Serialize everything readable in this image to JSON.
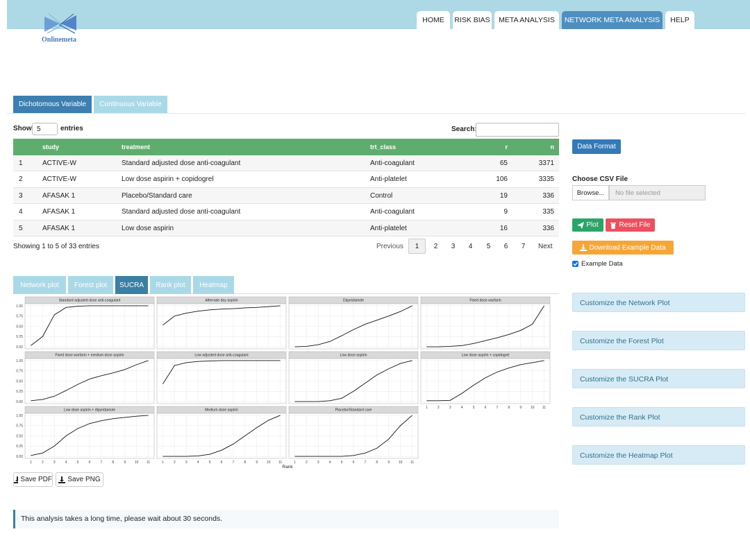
{
  "header": {
    "logo": "Onlinemeta",
    "tabs": [
      "HOME",
      "RISK BIAS",
      "META ANALYSIS",
      "NETWORK META ANALYSIS",
      "HELP"
    ],
    "active_tab": 3
  },
  "variable_tabs": {
    "items": [
      "Dichotomous Variable",
      "Continuous Variable"
    ],
    "active": 0
  },
  "table": {
    "show": "Show",
    "length": 5,
    "entries": "entries",
    "search": "Search:",
    "columns": [
      "study",
      "treatment",
      "trt_class",
      "r",
      "n"
    ],
    "rows": [
      [
        1,
        "ACTIVE-W",
        "Standard adjusted dose anti-coagulant",
        "Anti-coagulant",
        65,
        3371
      ],
      [
        2,
        "ACTIVE-W",
        "Low dose aspirin + copidogrel",
        "Anti-platelet",
        106,
        3335
      ],
      [
        3,
        "AFASAK 1",
        "Placebo/Standard care",
        "Control",
        19,
        336
      ],
      [
        4,
        "AFASAK 1",
        "Standard adjusted dose anti-coagulant",
        "Anti-coagulant",
        9,
        335
      ],
      [
        5,
        "AFASAK 1",
        "Low dose aspirin",
        "Anti-platelet",
        16,
        336
      ]
    ],
    "info": "Showing 1 to 5 of 33 entries",
    "previous": "Previous",
    "pages": [
      1,
      2,
      3,
      4,
      5,
      6,
      7
    ],
    "current_page": 1,
    "next": "Next"
  },
  "plot_tabs": {
    "items": [
      "Network plot",
      "Forest plot",
      "SUCRA",
      "Rank plot",
      "Heatmap"
    ],
    "active": 2
  },
  "chart_data": {
    "type": "line",
    "x_label": "Rank",
    "x": [
      1,
      2,
      3,
      4,
      5,
      6,
      7,
      8,
      9,
      10,
      11
    ],
    "xlim": [
      0.5,
      11.5
    ],
    "xticks": [
      1,
      2,
      3,
      4,
      5,
      6,
      7,
      8,
      9,
      10,
      11
    ],
    "ylim": [
      -0.05,
      1.05
    ],
    "yticks": [
      {
        "value": 0,
        "label": "0.00"
      },
      {
        "value": 0.25,
        "label": "0.25"
      },
      {
        "value": 0.5,
        "label": "0.50"
      },
      {
        "value": 0.75,
        "label": "0.75"
      },
      {
        "value": 1,
        "label": "1.00"
      }
    ],
    "grid": true,
    "color": "#111111",
    "panels": [
      {
        "title": "Standard adjusted dose anti-coagulant",
        "values": [
          0.03,
          0.25,
          0.78,
          0.96,
          0.99,
          1,
          1,
          1,
          1,
          1,
          1
        ]
      },
      {
        "title": "Alternate day aspirin",
        "values": [
          0.53,
          0.75,
          0.82,
          0.87,
          0.9,
          0.92,
          0.93,
          0.95,
          0.96,
          0.98,
          1
        ]
      },
      {
        "title": "Dipyridamole",
        "values": [
          0,
          0.01,
          0.05,
          0.13,
          0.27,
          0.42,
          0.55,
          0.65,
          0.75,
          0.86,
          1
        ]
      },
      {
        "title": "Fixed dose warfarin",
        "values": [
          0,
          0,
          0.01,
          0.03,
          0.08,
          0.15,
          0.22,
          0.3,
          0.4,
          0.55,
          1
        ]
      },
      {
        "title": "Fixed dose warfarin + medium dose aspirin",
        "values": [
          0.02,
          0.05,
          0.13,
          0.27,
          0.42,
          0.55,
          0.63,
          0.7,
          0.78,
          0.9,
          1
        ]
      },
      {
        "title": "Low adjusted dose anti-coagulant",
        "values": [
          0.43,
          0.88,
          0.95,
          0.98,
          0.99,
          1,
          1,
          1,
          1,
          1,
          1
        ]
      },
      {
        "title": "Low dose aspirin",
        "values": [
          0,
          0,
          0,
          0.02,
          0.08,
          0.25,
          0.45,
          0.65,
          0.8,
          0.93,
          1
        ]
      },
      {
        "title": "Low dose aspirin + copidogrel",
        "values": [
          0.02,
          0.02,
          0.03,
          0.2,
          0.4,
          0.58,
          0.72,
          0.82,
          0.9,
          0.95,
          1
        ]
      },
      {
        "title": "Low dose aspirin + dipyridamole",
        "values": [
          0.02,
          0.08,
          0.25,
          0.5,
          0.68,
          0.8,
          0.87,
          0.92,
          0.95,
          0.98,
          1
        ]
      },
      {
        "title": "Medium dose aspirin",
        "values": [
          0,
          0,
          0,
          0.01,
          0.05,
          0.15,
          0.3,
          0.5,
          0.7,
          0.88,
          1
        ]
      },
      {
        "title": "Placebo/Standard care",
        "values": [
          0,
          0,
          0,
          0,
          0,
          0.02,
          0.08,
          0.2,
          0.42,
          0.75,
          1
        ]
      }
    ]
  },
  "plot_buttons": [
    "Save PDF",
    "Save PNG"
  ],
  "notice": "This analysis takes a long time, please wait about 30 seconds.",
  "sidebar": {
    "data_format": "Data Format",
    "file_label": "Choose CSV File",
    "browse": "Browse...",
    "no_file": "No file selected",
    "plot": "Plot",
    "reset": "Reset File",
    "download": "Download Example Data",
    "example_checkbox": "Example Data",
    "example_checked": true,
    "customize": [
      "Customize the Network Plot",
      "Customize the Forest Plot",
      "Customize the SUCRA Plot",
      "Customize the Rank Plot",
      "Customize the Heatmap Plot"
    ]
  }
}
